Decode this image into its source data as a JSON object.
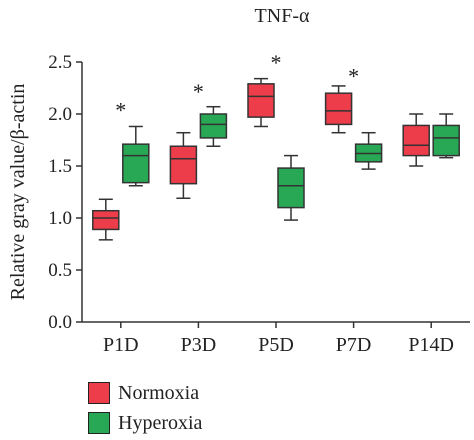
{
  "chart_data": {
    "type": "box",
    "title": "TNF-α",
    "ylabel": "Relative gray value/β-actin",
    "xlabel": "",
    "ylim": [
      0,
      2.5
    ],
    "yticks": [
      0.0,
      0.5,
      1.0,
      1.5,
      2.0,
      2.5
    ],
    "ytick_labels": [
      "0.0",
      "0.5",
      "1.0",
      "1.5",
      "2.0",
      "2.5"
    ],
    "categories": [
      "P1D",
      "P3D",
      "P5D",
      "P7D",
      "P14D"
    ],
    "series": [
      {
        "name": "Normoxia",
        "color": "#ee3d4a",
        "boxes": [
          {
            "min": 0.79,
            "q1": 0.89,
            "median": 1.0,
            "q3": 1.07,
            "max": 1.18
          },
          {
            "min": 1.19,
            "q1": 1.33,
            "median": 1.57,
            "q3": 1.69,
            "max": 1.82
          },
          {
            "min": 1.88,
            "q1": 1.97,
            "median": 2.17,
            "q3": 2.29,
            "max": 2.34
          },
          {
            "min": 1.82,
            "q1": 1.9,
            "median": 2.03,
            "q3": 2.2,
            "max": 2.27
          },
          {
            "min": 1.5,
            "q1": 1.6,
            "median": 1.7,
            "q3": 1.89,
            "max": 2.0
          }
        ]
      },
      {
        "name": "Hyperoxia",
        "color": "#28a855",
        "boxes": [
          {
            "min": 1.31,
            "q1": 1.34,
            "median": 1.6,
            "q3": 1.71,
            "max": 1.88
          },
          {
            "min": 1.69,
            "q1": 1.77,
            "median": 1.9,
            "q3": 2.0,
            "max": 2.07
          },
          {
            "min": 0.98,
            "q1": 1.1,
            "median": 1.31,
            "q3": 1.48,
            "max": 1.6
          },
          {
            "min": 1.47,
            "q1": 1.54,
            "median": 1.62,
            "q3": 1.71,
            "max": 1.82
          },
          {
            "min": 1.58,
            "q1": 1.6,
            "median": 1.77,
            "q3": 1.89,
            "max": 2.0
          }
        ]
      }
    ],
    "annotations": [
      {
        "category": "P1D",
        "text": "*",
        "y": 2.08
      },
      {
        "category": "P3D",
        "text": "*",
        "y": 2.26
      },
      {
        "category": "P5D",
        "text": "*",
        "y": 2.54
      },
      {
        "category": "P7D",
        "text": "*",
        "y": 2.41
      }
    ],
    "grid": false,
    "legend_position": "bottom-left"
  }
}
